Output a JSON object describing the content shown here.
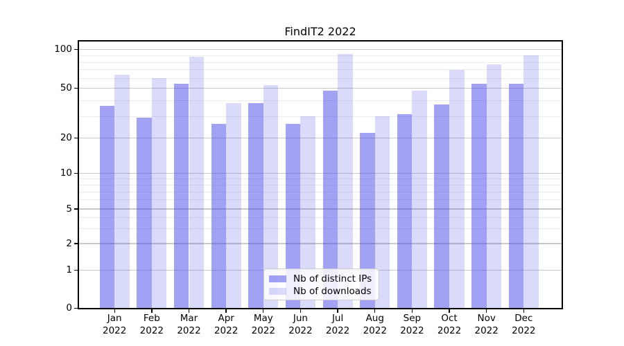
{
  "chart_data": {
    "type": "bar",
    "title": "FindIT2 2022",
    "months": [
      "Jan",
      "Feb",
      "Mar",
      "Apr",
      "May",
      "Jun",
      "Jul",
      "Aug",
      "Sep",
      "Oct",
      "Nov",
      "Dec"
    ],
    "year": "2022",
    "categories": [
      "Jan 2022",
      "Feb 2022",
      "Mar 2022",
      "Apr 2022",
      "May 2022",
      "Jun 2022",
      "Jul 2022",
      "Aug 2022",
      "Sep 2022",
      "Oct 2022",
      "Nov 2022",
      "Dec 2022"
    ],
    "series": [
      {
        "name": "Nb of distinct IPs",
        "color": "rgba(60,60,235,0.48)",
        "values": [
          36,
          29,
          54,
          26,
          38,
          26,
          48,
          22,
          31,
          37,
          54,
          54
        ]
      },
      {
        "name": "Nb of downloads",
        "color": "rgba(60,60,235,0.19)",
        "values": [
          64,
          60,
          88,
          38,
          53,
          30,
          92,
          30,
          48,
          69,
          77,
          90
        ]
      }
    ],
    "y_axis": {
      "scale": "log (linear below 1, includes 0)",
      "major_ticks": [
        0,
        1,
        2,
        5,
        10,
        20,
        50,
        100
      ],
      "major_tick_labels": [
        "0",
        "1",
        "2",
        "5",
        "10",
        "20",
        "50",
        "100"
      ],
      "minor_gridlines": [
        3,
        4,
        6,
        7,
        8,
        9,
        30,
        40,
        60,
        70,
        80,
        90
      ],
      "range": [
        0,
        110
      ]
    },
    "grid": "horizontal major + minor",
    "legend_position": "lower center",
    "xlabel": "",
    "ylabel": ""
  },
  "colors": {
    "bar_distinct_ips": "rgba(60,60,235,0.48)",
    "bar_downloads": "rgba(60,60,235,0.19)",
    "grid_major": "#c9c9c9",
    "grid_minor": "#ececec",
    "spine": "#000000",
    "text": "#000000",
    "legend_border": "#cccccc",
    "legend_bg": "rgba(255,255,255,0.82)"
  }
}
